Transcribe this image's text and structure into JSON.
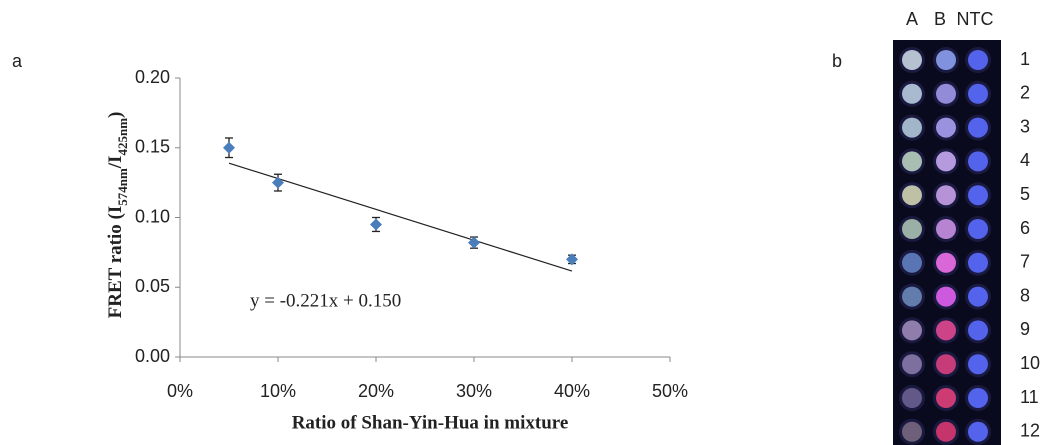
{
  "chart_data": {
    "type": "scatter",
    "panel_label": "a",
    "x": [
      5,
      10,
      20,
      30,
      40
    ],
    "values": [
      0.15,
      0.125,
      0.095,
      0.082,
      0.07
    ],
    "errors": [
      0.007,
      0.006,
      0.005,
      0.004,
      0.003
    ],
    "color": "#4a7ebb",
    "trendline": {
      "slope": -0.221,
      "intercept": 0.15,
      "equation": "y = -0.221x + 0.150"
    },
    "xlim": [
      0,
      50
    ],
    "xticks": [
      {
        "value": 0,
        "label": "0%"
      },
      {
        "value": 10,
        "label": "10%"
      },
      {
        "value": 20,
        "label": "20%"
      },
      {
        "value": 30,
        "label": "30%"
      },
      {
        "value": 40,
        "label": "40%"
      },
      {
        "value": 50,
        "label": "50%"
      }
    ],
    "ylim": [
      0,
      0.2
    ],
    "yticks": [
      {
        "value": 0,
        "label": "0.00"
      },
      {
        "value": 0.05,
        "label": "0.05"
      },
      {
        "value": 0.1,
        "label": "0.10"
      },
      {
        "value": 0.15,
        "label": "0.15"
      },
      {
        "value": 0.2,
        "label": "0.20"
      }
    ],
    "x_label": "Ratio of Shan-Yin-Hua  in mixture",
    "y_label": [
      "FRET ratio (I",
      "574nm",
      "/I",
      "425nm",
      ")"
    ]
  },
  "plate": {
    "panel_label": "b",
    "columns": [
      "A",
      "B",
      "NTC"
    ],
    "rows": [
      "1",
      "2",
      "3",
      "4",
      "5",
      "6",
      "7",
      "8",
      "9",
      "10",
      "11",
      "12"
    ]
  }
}
